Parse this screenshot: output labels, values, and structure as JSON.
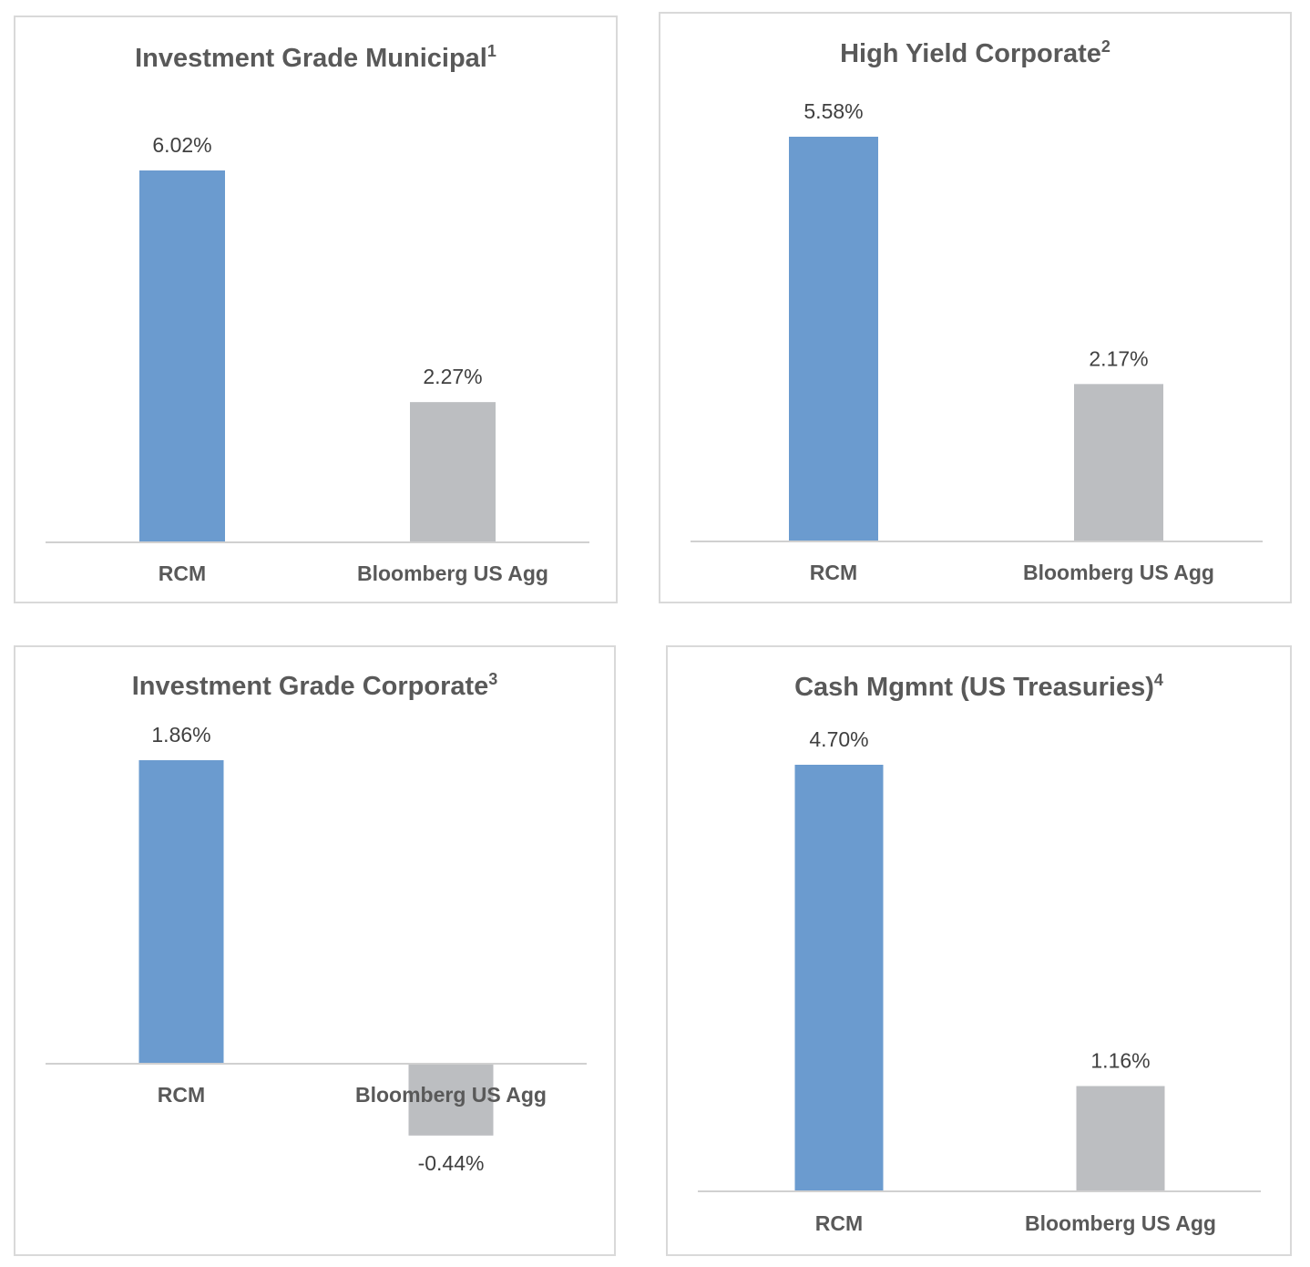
{
  "colors": {
    "rcm": "#6b9bcf",
    "benchmark": "#bcbec1",
    "axis": "#d0d0d0"
  },
  "chart_data": [
    {
      "type": "bar",
      "title": "Investment Grade Municipal",
      "title_sup": "1",
      "categories": [
        "RCM",
        "Bloomberg US Agg"
      ],
      "values": [
        6.02,
        2.27
      ],
      "value_labels": [
        "6.02%",
        "2.27%"
      ],
      "ylim": [
        0,
        6.02
      ]
    },
    {
      "type": "bar",
      "title": "High Yield Corporate",
      "title_sup": "2",
      "categories": [
        "RCM",
        "Bloomberg US Agg"
      ],
      "values": [
        5.58,
        2.17
      ],
      "value_labels": [
        "5.58%",
        "2.17%"
      ],
      "ylim": [
        0,
        5.58
      ]
    },
    {
      "type": "bar",
      "title": "Investment Grade Corporate",
      "title_sup": "3",
      "categories": [
        "RCM",
        "Bloomberg US Agg"
      ],
      "values": [
        1.86,
        -0.44
      ],
      "value_labels": [
        "1.86%",
        "-0.44%"
      ],
      "ylim": [
        -0.44,
        1.86
      ]
    },
    {
      "type": "bar",
      "title": "Cash Mgmnt (US Treasuries)",
      "title_sup": "4",
      "categories": [
        "RCM",
        "Bloomberg US Agg"
      ],
      "values": [
        4.7,
        1.16
      ],
      "value_labels": [
        "4.70%",
        "1.16%"
      ],
      "ylim": [
        0,
        4.7
      ]
    }
  ]
}
